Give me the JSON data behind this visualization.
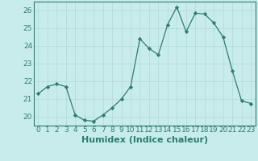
{
  "x": [
    0,
    1,
    2,
    3,
    4,
    5,
    6,
    7,
    8,
    9,
    10,
    11,
    12,
    13,
    14,
    15,
    16,
    17,
    18,
    19,
    20,
    21,
    22,
    23
  ],
  "y": [
    21.3,
    21.7,
    21.85,
    21.7,
    20.1,
    19.8,
    19.75,
    20.1,
    20.5,
    21.0,
    21.7,
    24.4,
    23.85,
    23.5,
    25.2,
    26.2,
    24.8,
    25.85,
    25.8,
    25.3,
    24.5,
    22.6,
    20.9,
    20.75
  ],
  "line_color": "#2e7d6e",
  "marker": "D",
  "marker_size": 2.2,
  "background_color": "#c8ecec",
  "grid_color": "#b0d8d8",
  "xlabel": "Humidex (Indice chaleur)",
  "ylim": [
    19.5,
    26.5
  ],
  "xlim": [
    -0.5,
    23.5
  ],
  "yticks": [
    20,
    21,
    22,
    23,
    24,
    25,
    26
  ],
  "xticks": [
    0,
    1,
    2,
    3,
    4,
    5,
    6,
    7,
    8,
    9,
    10,
    11,
    12,
    13,
    14,
    15,
    16,
    17,
    18,
    19,
    20,
    21,
    22,
    23
  ],
  "tick_fontsize": 6.5,
  "xlabel_fontsize": 8,
  "tick_color": "#2e7d6e",
  "spine_color": "#2e7d6e"
}
